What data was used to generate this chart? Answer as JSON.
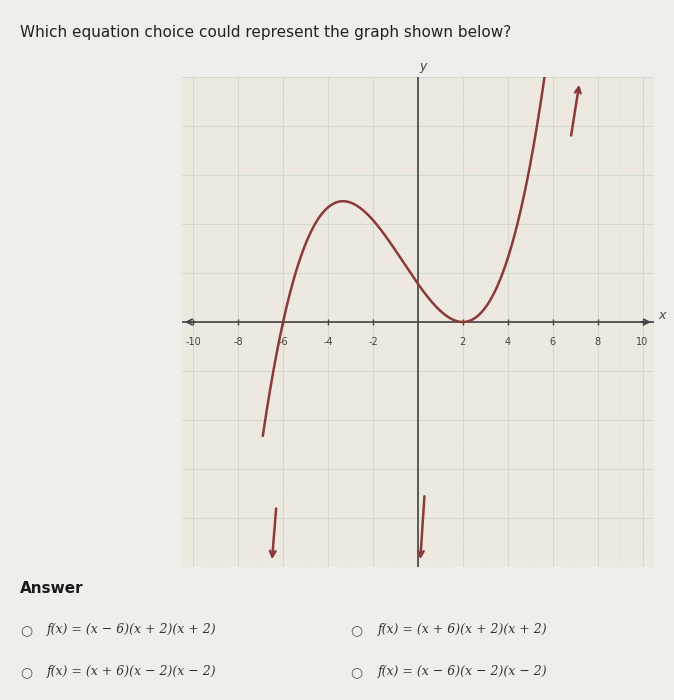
{
  "title": "Which equation choice could represent the graph shown below?",
  "title_fontsize": 11,
  "answer_label": "Answer",
  "choices_left": [
    "f(x) = (x − 6)(x + 2)(x + 2)",
    "f(x) = (x + 6)(x − 2)(x − 2)"
  ],
  "choices_right": [
    "f(x) = (x + 6)(x + 2)(x + 2)",
    "f(x) = (x − 6)(x − 2)(x − 2)"
  ],
  "xlim": [
    -10.5,
    10.5
  ],
  "ylim": [
    -10,
    10
  ],
  "xticks": [
    -10,
    -8,
    -6,
    -4,
    -2,
    2,
    4,
    6,
    8,
    10
  ],
  "curve_color": "#8B3A3A",
  "axis_color": "#444444",
  "grid_color_major": "#c9d5c5",
  "grid_color_minor": "#dde5da",
  "plot_bg_color": "#ede8e0",
  "fig_bg_color": "#f0eeea",
  "scale_factor": 0.065,
  "x_zero": -6,
  "x_double": 2,
  "x_start": -6.8,
  "x_end": 7.5
}
